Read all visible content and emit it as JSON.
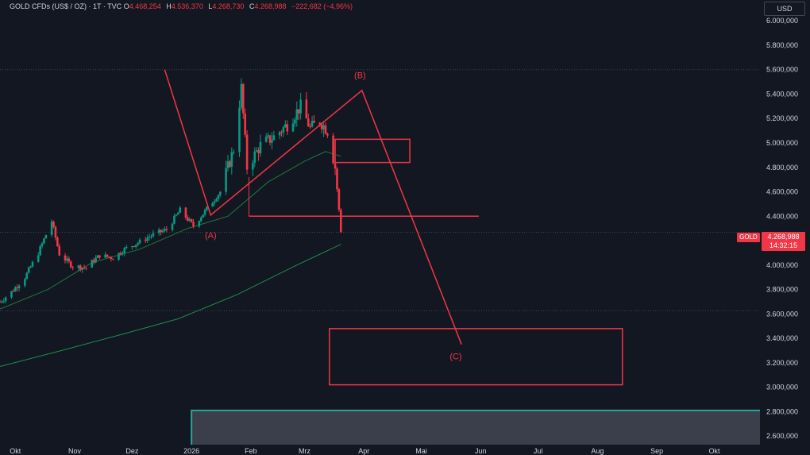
{
  "header": {
    "symbol": "GOLD CFDs (US$ / OZ) · 1T · TVC",
    "open_label": "O",
    "open": "4.468,254",
    "high_label": "H",
    "high": "4.536,370",
    "low_label": "L",
    "low": "4.268,730",
    "close_label": "C",
    "close": "4.268,988",
    "change": "−222,682 (−4,96%)"
  },
  "currency_button": "USD",
  "price_tag": {
    "symbol": "GOLD",
    "price": "4.268,988",
    "countdown": "14:32:15"
  },
  "colors": {
    "up": "#089981",
    "down": "#f23645",
    "ma_fast": "#1f7a3a",
    "ma_slow": "#1e8e4a",
    "annotation": "#f23645",
    "background": "#131722"
  },
  "chart_data": {
    "type": "candlestick",
    "y_axis_labels": [
      "6.000,000",
      "5.800,000",
      "5.600,000",
      "5.400,000",
      "5.200,000",
      "5.000,000",
      "4.800,000",
      "4.600,000",
      "4.400,000",
      "4.200,000",
      "4.000,000",
      "3.800,000",
      "3.600,000",
      "3.400,000",
      "3.200,000",
      "3.000,000",
      "2.800,000",
      "2.600,000"
    ],
    "y_axis_values": [
      6000,
      5800,
      5600,
      5400,
      5200,
      5000,
      4800,
      4600,
      4400,
      4200,
      4000,
      3800,
      3600,
      3400,
      3200,
      3000,
      2800,
      2600
    ],
    "ylim": [
      2530,
      6170
    ],
    "x_axis_labels": [
      "Okt",
      "Nov",
      "Dez",
      "2026",
      "Feb",
      "Mrz",
      "Apr",
      "Mai",
      "Jun",
      "Jul",
      "Aug",
      "Sep",
      "Okt"
    ],
    "x_axis_values": [
      "2025-10-01",
      "2025-11-01",
      "2025-12-01",
      "2026-01-01",
      "2026-02-01",
      "2026-03-01",
      "2026-04-01",
      "2026-05-01",
      "2026-06-01",
      "2026-07-01",
      "2026-08-01",
      "2026-09-01",
      "2026-10-01"
    ],
    "xlim": [
      "2025-09-23",
      "2026-10-24"
    ],
    "close_series": [
      [
        "2025-09-23",
        3700
      ],
      [
        "2025-09-29",
        3780
      ],
      [
        "2025-10-06",
        3900
      ],
      [
        "2025-10-13",
        4100
      ],
      [
        "2025-10-20",
        4360
      ],
      [
        "2025-10-24",
        4090
      ],
      [
        "2025-10-31",
        3990
      ],
      [
        "2025-11-07",
        3980
      ],
      [
        "2025-11-14",
        4080
      ],
      [
        "2025-11-21",
        4060
      ],
      [
        "2025-11-28",
        4140
      ],
      [
        "2025-12-05",
        4190
      ],
      [
        "2025-12-12",
        4250
      ],
      [
        "2025-12-19",
        4290
      ],
      [
        "2025-12-26",
        4450
      ],
      [
        "2026-01-02",
        4320
      ],
      [
        "2026-01-09",
        4460
      ],
      [
        "2026-01-16",
        4600
      ],
      [
        "2026-01-23",
        4950
      ],
      [
        "2026-01-27",
        5450
      ],
      [
        "2026-01-30",
        4800
      ],
      [
        "2026-02-06",
        4980
      ],
      [
        "2026-02-13",
        5050
      ],
      [
        "2026-02-20",
        5150
      ],
      [
        "2026-02-27",
        5300
      ],
      [
        "2026-03-04",
        5120
      ],
      [
        "2026-03-09",
        5180
      ],
      [
        "2026-03-13",
        5100
      ],
      [
        "2026-03-17",
        4800
      ],
      [
        "2026-03-20",
        4268.988
      ]
    ],
    "ma_fast": [
      [
        "2025-09-23",
        3640
      ],
      [
        "2025-10-18",
        3800
      ],
      [
        "2025-11-10",
        4020
      ],
      [
        "2025-12-05",
        4130
      ],
      [
        "2025-12-30",
        4300
      ],
      [
        "2026-01-20",
        4400
      ],
      [
        "2026-02-10",
        4680
      ],
      [
        "2026-03-01",
        4850
      ],
      [
        "2026-03-12",
        4930
      ],
      [
        "2026-03-20",
        4890
      ]
    ],
    "ma_slow": [
      [
        "2025-09-23",
        3170
      ],
      [
        "2025-10-25",
        3300
      ],
      [
        "2025-11-25",
        3430
      ],
      [
        "2025-12-25",
        3560
      ],
      [
        "2026-01-25",
        3760
      ],
      [
        "2026-02-25",
        4000
      ],
      [
        "2026-03-20",
        4170
      ]
    ],
    "horizontal_levels": [
      5600,
      4268.988,
      3625
    ],
    "annotations": {
      "wave_labels": [
        {
          "text": "(A)",
          "x": "2026-01-11",
          "y": 4220
        },
        {
          "text": "(B)",
          "x": "2026-03-30",
          "y": 5530
        },
        {
          "text": "(C)",
          "x": "2026-05-19",
          "y": 3230
        }
      ],
      "wave_path": [
        [
          "2025-12-18",
          5600
        ],
        [
          "2026-01-11",
          4410
        ],
        [
          "2026-03-31",
          5430
        ],
        [
          "2026-05-22",
          3350
        ]
      ],
      "support_line": {
        "y": 4400,
        "x_start": "2026-01-31",
        "x_end": "2026-05-31"
      },
      "zones": [
        {
          "x_start": "2026-03-17",
          "x_end": "2026-04-25",
          "y_top": 5030,
          "y_bottom": 4840
        },
        {
          "x_start": "2026-03-14",
          "x_end": "2026-08-14",
          "y_top": 3480,
          "y_bottom": 3020
        }
      ],
      "teal_zone": {
        "x_start": "2026-01-01",
        "y_top": 2810,
        "y_bottom": 2530
      }
    }
  }
}
